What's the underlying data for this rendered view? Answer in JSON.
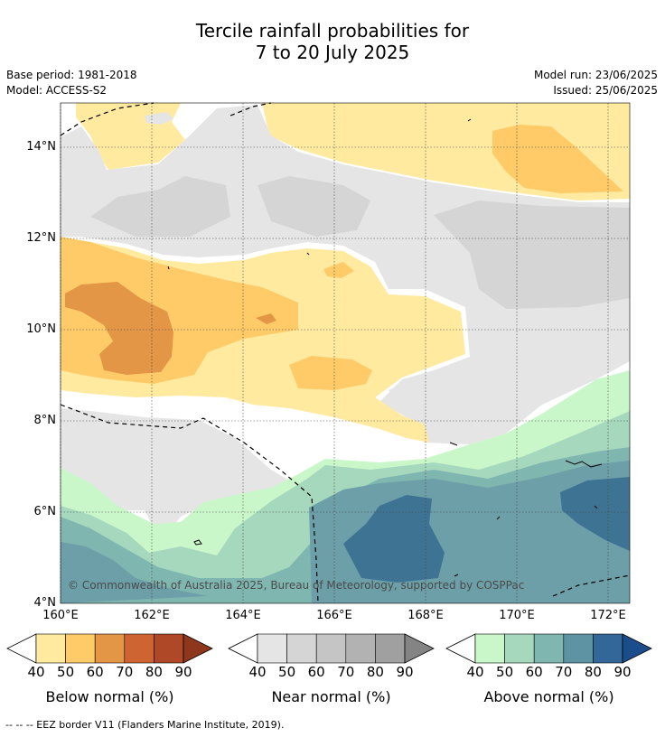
{
  "title": {
    "line1": "Tercile rainfall probabilities for",
    "line2": "7 to 20 July 2025"
  },
  "meta": {
    "base_period": "Base period: 1981-2018",
    "model": "Model: ACCESS-S2",
    "model_run": "Model run: 23/06/2025",
    "issued": "Issued: 25/06/2025"
  },
  "map": {
    "copyright": "© Commonwealth of Australia 2025, Bureau of Meteorology, supported by COSPPac",
    "lon_ticks": [
      "160°E",
      "162°E",
      "164°E",
      "166°E",
      "168°E",
      "170°E",
      "172°E"
    ],
    "lat_ticks": [
      "14°N",
      "12°N",
      "10°N",
      "8°N",
      "6°N",
      "4°N"
    ]
  },
  "colorbars": [
    {
      "label": "Below normal (%)",
      "ticks": [
        "40",
        "50",
        "60",
        "70",
        "80",
        "90"
      ],
      "colors": [
        "#ffeaa0",
        "#fecb68",
        "#e49647",
        "#cd6432",
        "#ae4827",
        "#8f371d"
      ]
    },
    {
      "label": "Near normal (%)",
      "ticks": [
        "40",
        "50",
        "60",
        "70",
        "80",
        "90"
      ],
      "colors": [
        "#e5e5e5",
        "#d5d5d5",
        "#c5c5c5",
        "#b2b2b2",
        "#a0a0a0",
        "#848484"
      ]
    },
    {
      "label": "Above normal (%)",
      "ticks": [
        "40",
        "50",
        "60",
        "70",
        "80",
        "90"
      ],
      "colors": [
        "#caf7c9",
        "#a5d8bd",
        "#80b6b0",
        "#5e93a3",
        "#336799",
        "#1b4d8a"
      ]
    }
  ],
  "colors": {
    "below_40": "#ffeaa0",
    "below_50": "#fecb68",
    "below_60": "#e49647",
    "near_40": "#e5e5e5",
    "near_50": "#d5d5d5",
    "above_40": "#caf7c9",
    "above_50": "#a5d8bd",
    "above_60": "#80b6b0",
    "above_70": "#6c9fa8",
    "above_80": "#3f7394"
  },
  "footer": "--  --  -- EEZ border V11 (Flanders Marine Institute, 2019)."
}
